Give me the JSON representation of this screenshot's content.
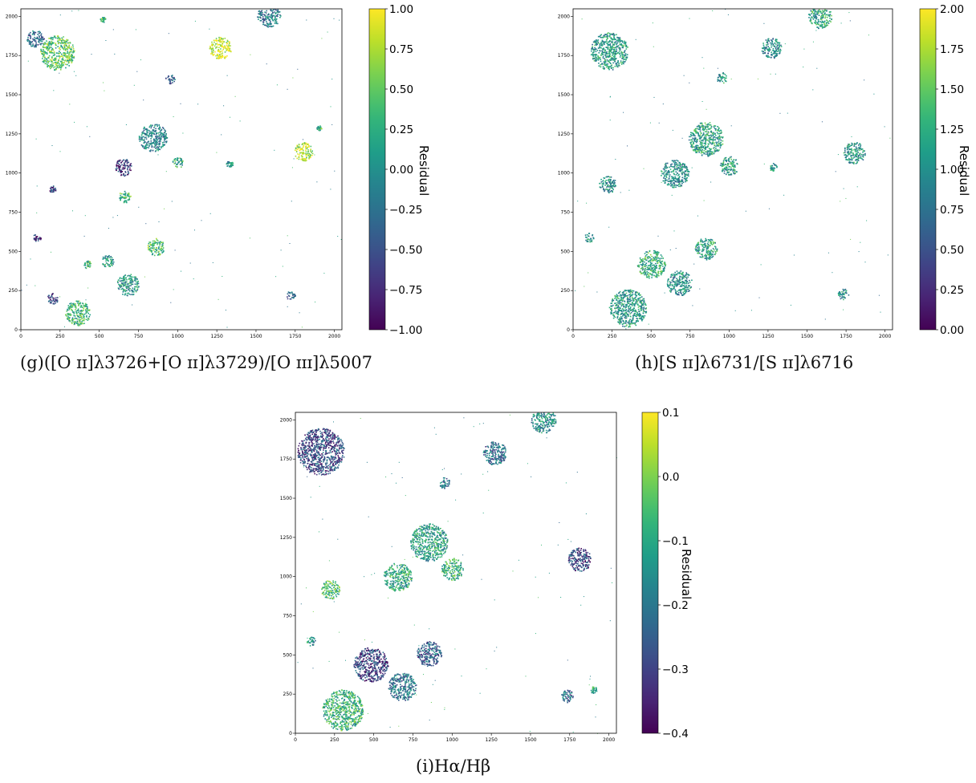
{
  "chart_data": [
    {
      "type": "heatmap",
      "caption": "(g)([O ɪɪ]λ3726+[O ɪɪ]λ3729)/[O ɪɪɪ]λ5007",
      "xlim": [
        0,
        2048
      ],
      "ylim": [
        0,
        2048
      ],
      "x_ticks": [
        "0",
        "250",
        "500",
        "750",
        "1000",
        "1250",
        "1500",
        "1750",
        "2000"
      ],
      "y_ticks": [
        "0",
        "250",
        "500",
        "750",
        "1000",
        "1250",
        "1500",
        "1750",
        "2000"
      ],
      "colorbar": {
        "label": "Residual",
        "colormap": "viridis",
        "min": -1.0,
        "max": 1.0,
        "ticks": [
          "−1.00",
          "−0.75",
          "−0.50",
          "−0.25",
          "0.00",
          "0.25",
          "0.50",
          "0.75",
          "1.00"
        ]
      },
      "regions": [
        {
          "x": 230,
          "y": 1770,
          "r": 110,
          "v": 0.45
        },
        {
          "x": 90,
          "y": 1860,
          "r": 55,
          "v": -0.3
        },
        {
          "x": 1270,
          "y": 1800,
          "r": 70,
          "v": 0.92
        },
        {
          "x": 1580,
          "y": 2010,
          "r": 75,
          "v": -0.2
        },
        {
          "x": 520,
          "y": 1980,
          "r": 18,
          "v": 0.3
        },
        {
          "x": 950,
          "y": 1600,
          "r": 30,
          "v": -0.4
        },
        {
          "x": 840,
          "y": 1230,
          "r": 90,
          "v": -0.1
        },
        {
          "x": 650,
          "y": 1040,
          "r": 55,
          "v": -0.7
        },
        {
          "x": 1000,
          "y": 1070,
          "r": 35,
          "v": 0.2
        },
        {
          "x": 660,
          "y": 850,
          "r": 40,
          "v": 0.35
        },
        {
          "x": 200,
          "y": 900,
          "r": 22,
          "v": -0.6
        },
        {
          "x": 1800,
          "y": 1140,
          "r": 60,
          "v": 0.8
        },
        {
          "x": 1330,
          "y": 1060,
          "r": 22,
          "v": 0.0
        },
        {
          "x": 1900,
          "y": 1290,
          "r": 16,
          "v": 0.3
        },
        {
          "x": 100,
          "y": 590,
          "r": 25,
          "v": -0.75
        },
        {
          "x": 860,
          "y": 530,
          "r": 55,
          "v": 0.4
        },
        {
          "x": 680,
          "y": 290,
          "r": 70,
          "v": 0.05
        },
        {
          "x": 360,
          "y": 110,
          "r": 80,
          "v": 0.3
        },
        {
          "x": 200,
          "y": 200,
          "r": 35,
          "v": -0.6
        },
        {
          "x": 1720,
          "y": 220,
          "r": 30,
          "v": -0.2
        },
        {
          "x": 420,
          "y": 420,
          "r": 25,
          "v": 0.2
        },
        {
          "x": 550,
          "y": 440,
          "r": 40,
          "v": 0.1
        }
      ]
    },
    {
      "type": "heatmap",
      "caption": "(h)[S ɪɪ]λ6731/[S ɪɪ]λ6716",
      "xlim": [
        0,
        2048
      ],
      "ylim": [
        0,
        2048
      ],
      "x_ticks": [
        "0",
        "250",
        "500",
        "750",
        "1000",
        "1250",
        "1500",
        "1750",
        "2000"
      ],
      "y_ticks": [
        "0",
        "250",
        "500",
        "750",
        "1000",
        "1250",
        "1500",
        "1750",
        "2000"
      ],
      "colorbar": {
        "label": "Residual",
        "colormap": "viridis",
        "min": 0.0,
        "max": 2.0,
        "ticks": [
          "0.00",
          "0.25",
          "0.50",
          "0.75",
          "1.00",
          "1.25",
          "1.50",
          "1.75",
          "2.00"
        ]
      },
      "regions": [
        {
          "x": 230,
          "y": 1780,
          "r": 120,
          "v": 1.1
        },
        {
          "x": 1270,
          "y": 1800,
          "r": 65,
          "v": 0.95
        },
        {
          "x": 1580,
          "y": 2000,
          "r": 75,
          "v": 1.2
        },
        {
          "x": 950,
          "y": 1610,
          "r": 35,
          "v": 1.1
        },
        {
          "x": 850,
          "y": 1220,
          "r": 110,
          "v": 1.15
        },
        {
          "x": 650,
          "y": 1000,
          "r": 90,
          "v": 1.0
        },
        {
          "x": 1000,
          "y": 1050,
          "r": 60,
          "v": 1.1
        },
        {
          "x": 220,
          "y": 930,
          "r": 55,
          "v": 1.0
        },
        {
          "x": 1800,
          "y": 1130,
          "r": 70,
          "v": 1.05
        },
        {
          "x": 100,
          "y": 590,
          "r": 30,
          "v": 1.0
        },
        {
          "x": 850,
          "y": 520,
          "r": 70,
          "v": 1.15
        },
        {
          "x": 680,
          "y": 300,
          "r": 80,
          "v": 1.0
        },
        {
          "x": 350,
          "y": 140,
          "r": 120,
          "v": 1.1
        },
        {
          "x": 1730,
          "y": 230,
          "r": 35,
          "v": 1.0
        },
        {
          "x": 500,
          "y": 420,
          "r": 90,
          "v": 1.25
        },
        {
          "x": 1280,
          "y": 1040,
          "r": 25,
          "v": 1.1
        }
      ]
    },
    {
      "type": "heatmap",
      "caption": "(i)Hα/Hβ",
      "xlim": [
        0,
        2048
      ],
      "ylim": [
        0,
        2048
      ],
      "x_ticks": [
        "0",
        "250",
        "500",
        "750",
        "1000",
        "1250",
        "1500",
        "1750",
        "2000"
      ],
      "y_ticks": [
        "0",
        "250",
        "500",
        "750",
        "1000",
        "1250",
        "1500",
        "1750",
        "2000"
      ],
      "colorbar": {
        "label": "Residual",
        "colormap": "viridis",
        "min": -0.4,
        "max": 0.1,
        "ticks": [
          "−0.4",
          "−0.3",
          "−0.2",
          "−0.1",
          "0.0",
          "0.1"
        ]
      },
      "regions": [
        {
          "x": 160,
          "y": 1800,
          "r": 150,
          "v": -0.28
        },
        {
          "x": 1270,
          "y": 1790,
          "r": 75,
          "v": -0.22
        },
        {
          "x": 1580,
          "y": 2000,
          "r": 80,
          "v": -0.15
        },
        {
          "x": 950,
          "y": 1600,
          "r": 35,
          "v": -0.2
        },
        {
          "x": 850,
          "y": 1220,
          "r": 120,
          "v": -0.12
        },
        {
          "x": 650,
          "y": 1000,
          "r": 90,
          "v": -0.1
        },
        {
          "x": 1000,
          "y": 1050,
          "r": 70,
          "v": -0.08
        },
        {
          "x": 220,
          "y": 920,
          "r": 60,
          "v": -0.05
        },
        {
          "x": 1810,
          "y": 1110,
          "r": 75,
          "v": -0.3
        },
        {
          "x": 100,
          "y": 590,
          "r": 30,
          "v": -0.15
        },
        {
          "x": 850,
          "y": 510,
          "r": 80,
          "v": -0.25
        },
        {
          "x": 680,
          "y": 300,
          "r": 90,
          "v": -0.2
        },
        {
          "x": 300,
          "y": 150,
          "r": 130,
          "v": -0.08
        },
        {
          "x": 1730,
          "y": 240,
          "r": 40,
          "v": -0.22
        },
        {
          "x": 480,
          "y": 440,
          "r": 110,
          "v": -0.3
        },
        {
          "x": 1900,
          "y": 280,
          "r": 22,
          "v": -0.1
        }
      ]
    }
  ]
}
